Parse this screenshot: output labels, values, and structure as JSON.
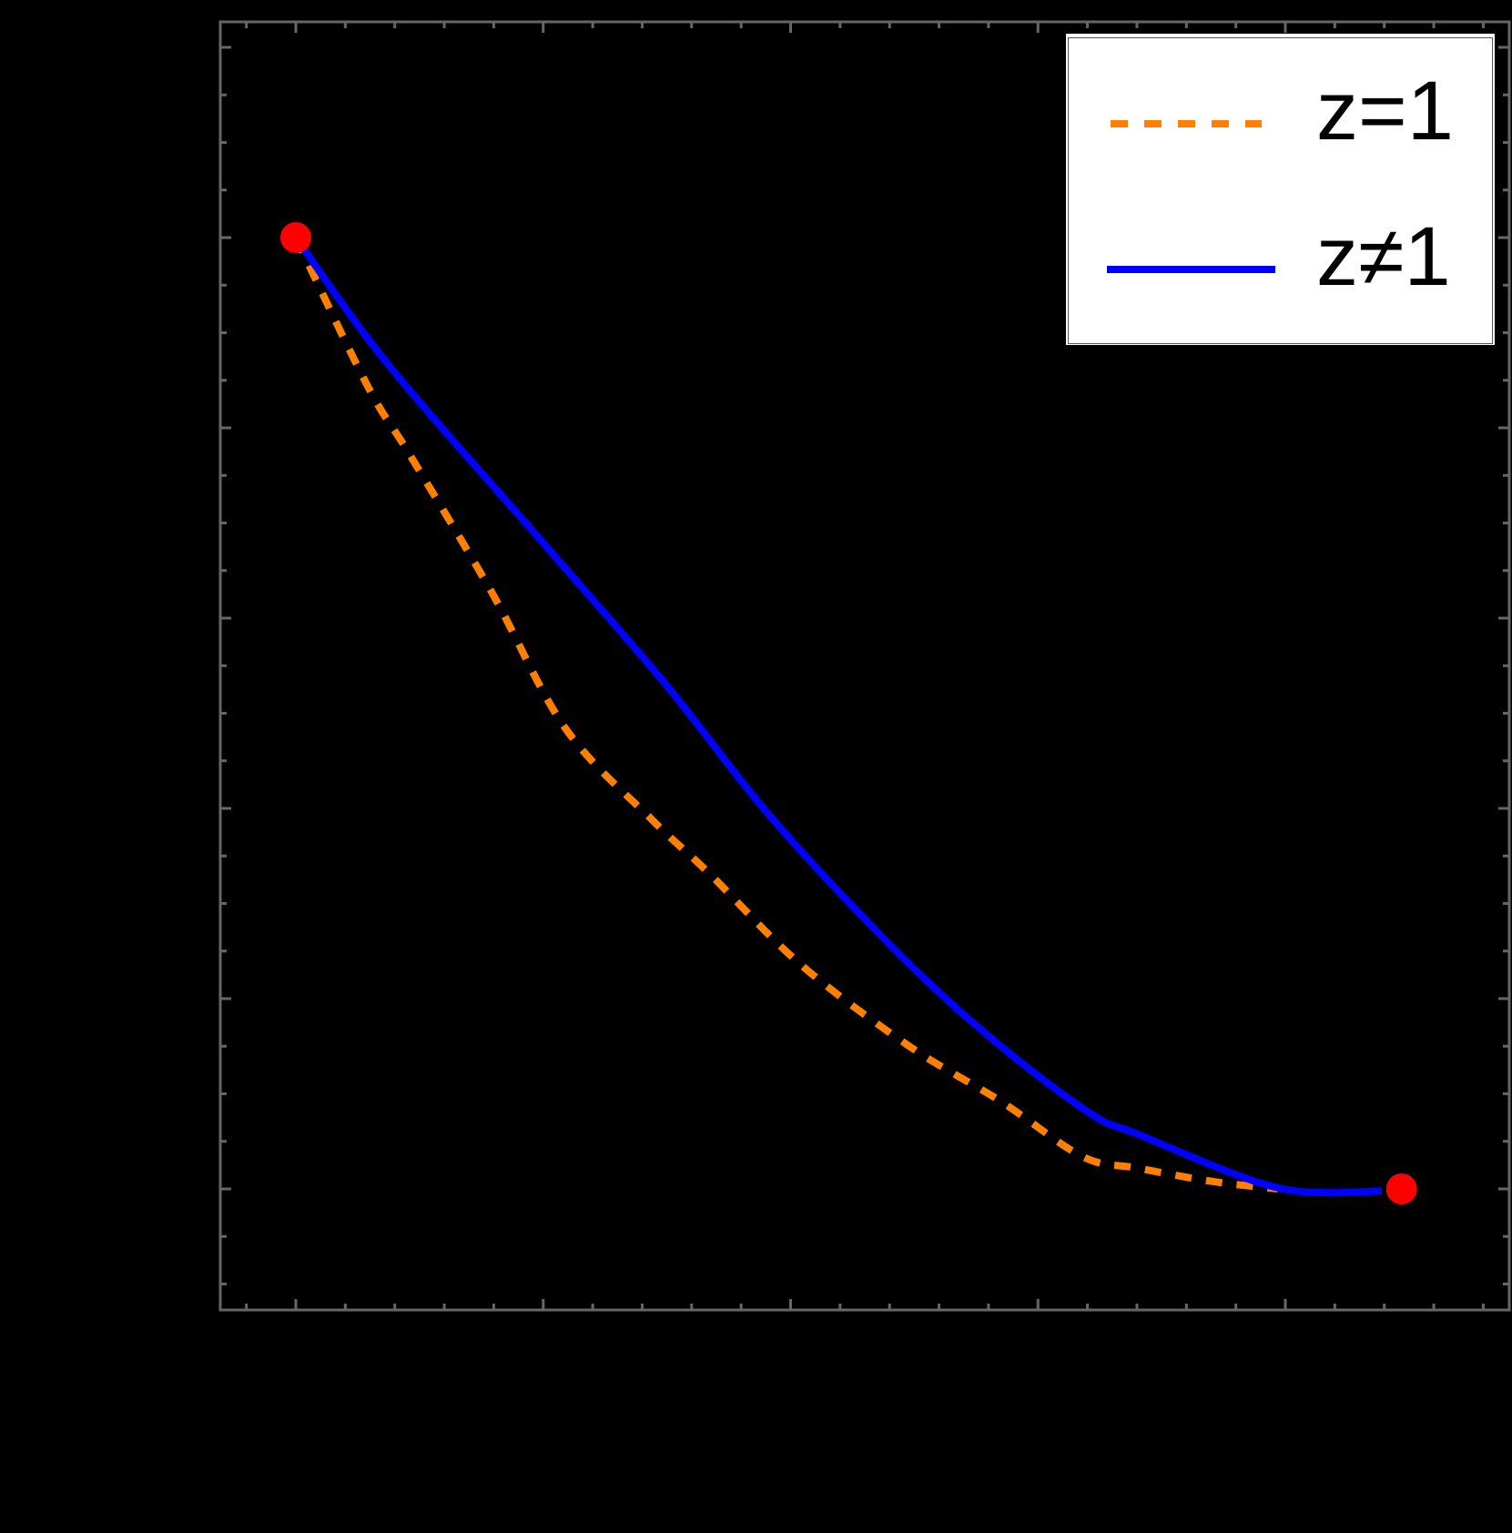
{
  "chart_data": {
    "type": "line",
    "title": "",
    "xlabel": "",
    "ylabel": "",
    "tick_labels_visible": false,
    "grid": false,
    "legend_position": "top-right",
    "frame_color": "#666666",
    "background": "#000000",
    "coordinate_note": "Axis tick labels are not visible; values are expressed in major-tick units (x: 0 at first major tick, step 1 per major tick; y: 0 at the major tick level of the right endpoint, step 1 per major tick).",
    "xlim": [
      -0.31,
      4.83
    ],
    "ylim": [
      -0.64,
      6.13
    ],
    "x_major_ticks": [
      0,
      1,
      2,
      3,
      4
    ],
    "y_major_ticks": [
      0,
      1,
      2,
      3,
      4,
      5,
      6
    ],
    "x_minor_per_major": 5,
    "y_minor_per_major": 4,
    "series": [
      {
        "name": "z=1",
        "style": "dashed",
        "color": "#FF8000",
        "x": [
          0,
          0.29,
          0.46,
          0.79,
          1.09,
          1.44,
          1.67,
          2.04,
          2.48,
          2.85,
          3.18,
          3.4,
          3.7,
          3.97
        ],
        "y": [
          5.0,
          4.22,
          3.86,
          3.14,
          2.42,
          1.94,
          1.66,
          1.18,
          0.75,
          0.46,
          0.17,
          0.11,
          0.04,
          0.0
        ]
      },
      {
        "name": "z≠1",
        "style": "solid",
        "color": "#0000FF",
        "x": [
          0,
          0.375,
          1.01,
          1.49,
          1.93,
          2.45,
          2.85,
          3.22,
          3.4,
          3.77,
          3.99,
          4.18,
          4.39
        ],
        "y": [
          5.0,
          4.33,
          3.38,
          2.66,
          1.94,
          1.22,
          0.75,
          0.39,
          0.29,
          0.09,
          0.0,
          -0.02,
          -0.01
        ]
      }
    ],
    "markers": [
      {
        "name": "start-point",
        "x": 0,
        "y": 5,
        "color": "#FF0000"
      },
      {
        "name": "end-point",
        "x": 4.47,
        "y": 0,
        "color": "#FF0000"
      }
    ],
    "legend": [
      {
        "label": "z=1",
        "style": "dashed",
        "color": "#FF8000"
      },
      {
        "label": "z≠1",
        "style": "solid",
        "color": "#0000FF"
      }
    ]
  },
  "legend": {
    "entry_1_label": "z=1",
    "entry_2_label": "z≠1"
  }
}
